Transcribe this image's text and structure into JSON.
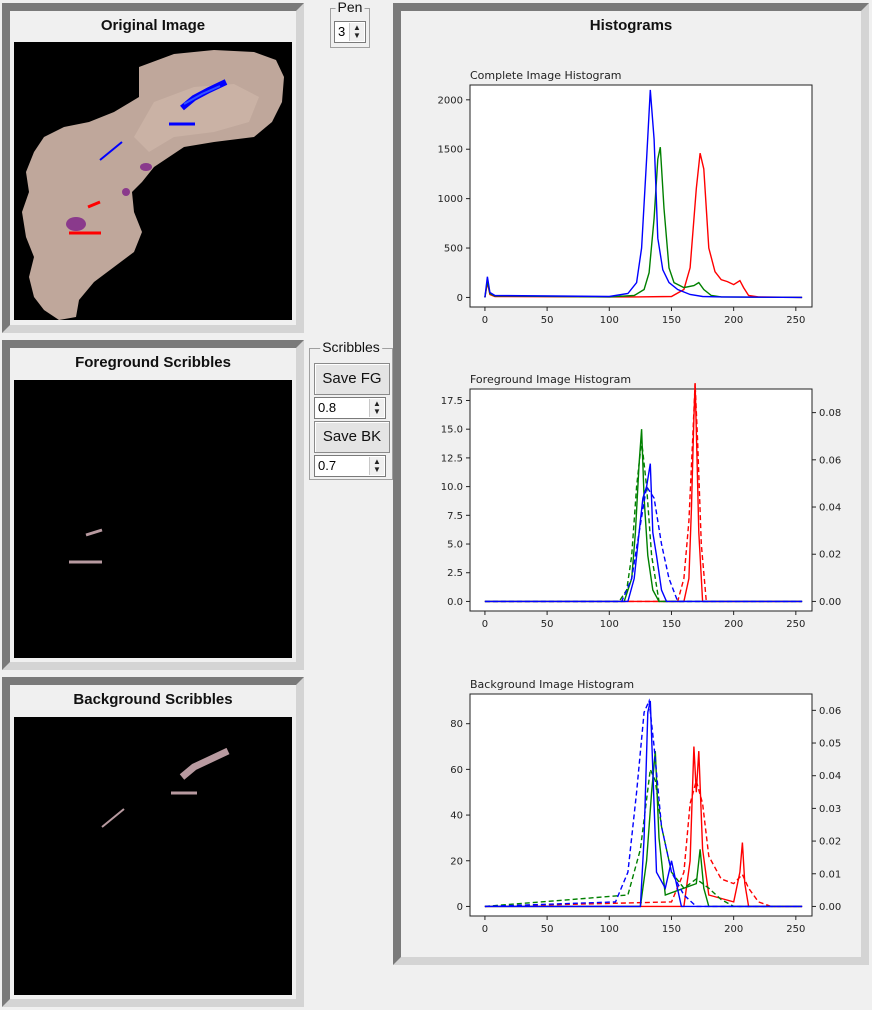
{
  "panels": {
    "original": {
      "title": "Original Image"
    },
    "foreground": {
      "title": "Foreground Scribbles"
    },
    "background": {
      "title": "Background Scribbles"
    },
    "histograms": {
      "title": "Histograms"
    }
  },
  "pen": {
    "label": "Pen",
    "value": "3"
  },
  "scribbles": {
    "label": "Scribbles",
    "save_fg_label": "Save FG",
    "fg_value": "0.8",
    "save_bk_label": "Save BK",
    "bk_value": "0.7"
  },
  "colors": {
    "red": "#ff0000",
    "green": "#008000",
    "blue": "#0000ff",
    "stain": "#b89aa0"
  },
  "chart_data": [
    {
      "type": "line",
      "title": "Complete Image Histogram",
      "xlim": [
        0,
        255
      ],
      "ylim": [
        0,
        2150
      ],
      "xticks": [
        0,
        50,
        100,
        150,
        200,
        250
      ],
      "yticks": [
        0,
        500,
        1000,
        1500,
        2000
      ],
      "series": [
        {
          "color": "red",
          "style": "solid",
          "x": [
            0,
            2,
            4,
            8,
            100,
            120,
            150,
            160,
            165,
            170,
            173,
            176,
            180,
            185,
            190,
            195,
            200,
            205,
            208,
            212,
            220,
            255
          ],
          "y": [
            0,
            150,
            30,
            10,
            5,
            5,
            10,
            80,
            300,
            1100,
            1460,
            1300,
            500,
            260,
            180,
            160,
            130,
            170,
            100,
            20,
            5,
            0
          ]
        },
        {
          "color": "green",
          "style": "solid",
          "x": [
            0,
            2,
            4,
            8,
            100,
            120,
            128,
            132,
            136,
            139,
            141,
            144,
            148,
            152,
            160,
            168,
            172,
            176,
            182,
            190,
            255
          ],
          "y": [
            0,
            170,
            40,
            15,
            5,
            20,
            80,
            250,
            800,
            1400,
            1520,
            900,
            300,
            150,
            100,
            120,
            150,
            80,
            20,
            5,
            0
          ]
        },
        {
          "color": "blue",
          "style": "solid",
          "x": [
            0,
            2,
            4,
            8,
            100,
            115,
            122,
            126,
            130,
            133,
            136,
            139,
            143,
            148,
            155,
            165,
            175,
            190,
            255
          ],
          "y": [
            0,
            210,
            50,
            20,
            10,
            40,
            150,
            500,
            1400,
            2100,
            1600,
            600,
            280,
            150,
            80,
            30,
            10,
            5,
            0
          ]
        }
      ]
    },
    {
      "type": "line",
      "title": "Foreground Image Histogram",
      "xlim": [
        0,
        255
      ],
      "ylim": [
        0,
        18.5
      ],
      "y2lim": [
        0,
        0.09
      ],
      "xticks": [
        0,
        50,
        100,
        150,
        200,
        250
      ],
      "yticks": [
        0.0,
        2.5,
        5.0,
        7.5,
        10.0,
        12.5,
        15.0,
        17.5
      ],
      "y2ticks": [
        0.0,
        0.02,
        0.04,
        0.06,
        0.08
      ],
      "series": [
        {
          "color": "red",
          "style": "solid",
          "x": [
            0,
            160,
            164,
            166,
            168,
            169,
            170,
            172,
            175,
            255
          ],
          "y": [
            0,
            0,
            2,
            8,
            16,
            19,
            15,
            6,
            0,
            0
          ]
        },
        {
          "color": "red",
          "style": "dashed",
          "x": [
            0,
            155,
            160,
            164,
            167,
            169,
            171,
            174,
            178,
            255
          ],
          "y": [
            0,
            0,
            2,
            7,
            14,
            19,
            14,
            5,
            0,
            0
          ]
        },
        {
          "color": "green",
          "style": "solid",
          "x": [
            0,
            112,
            118,
            121,
            124,
            126,
            128,
            131,
            135,
            140,
            255
          ],
          "y": [
            0,
            0,
            2,
            6,
            12,
            15,
            9,
            4,
            1,
            0,
            0
          ]
        },
        {
          "color": "green",
          "style": "dashed",
          "x": [
            0,
            108,
            114,
            118,
            122,
            126,
            130,
            134,
            140,
            255
          ],
          "y": [
            0,
            0,
            1,
            4,
            10,
            14,
            10,
            4,
            0,
            0
          ]
        },
        {
          "color": "blue",
          "style": "solid",
          "x": [
            0,
            115,
            120,
            124,
            127,
            130,
            133,
            135,
            138,
            142,
            146,
            255
          ],
          "y": [
            0,
            0,
            2,
            6,
            9,
            10,
            12,
            6,
            4,
            1,
            0,
            0
          ]
        },
        {
          "color": "blue",
          "style": "dashed",
          "x": [
            0,
            110,
            118,
            124,
            130,
            136,
            142,
            148,
            155,
            255
          ],
          "y": [
            0,
            0,
            2,
            6,
            10,
            9,
            5,
            2,
            0,
            0
          ]
        }
      ]
    },
    {
      "type": "line",
      "title": "Background Image Histogram",
      "xlim": [
        0,
        255
      ],
      "ylim": [
        0,
        93
      ],
      "y2lim": [
        0,
        0.065
      ],
      "xticks": [
        0,
        50,
        100,
        150,
        200,
        250
      ],
      "yticks": [
        0,
        20,
        40,
        60,
        80
      ],
      "y2ticks": [
        0.0,
        0.01,
        0.02,
        0.03,
        0.04,
        0.05,
        0.06
      ],
      "series": [
        {
          "color": "red",
          "style": "solid",
          "x": [
            0,
            160,
            165,
            168,
            170,
            172,
            175,
            180,
            200,
            205,
            207,
            209,
            212,
            255
          ],
          "y": [
            0,
            0,
            20,
            70,
            50,
            68,
            25,
            5,
            2,
            15,
            28,
            10,
            0,
            0
          ]
        },
        {
          "color": "red",
          "style": "dashed",
          "x": [
            0,
            150,
            160,
            165,
            170,
            175,
            180,
            190,
            200,
            207,
            212,
            220,
            230,
            255
          ],
          "y": [
            0,
            2,
            15,
            45,
            55,
            45,
            22,
            12,
            10,
            14,
            8,
            2,
            0,
            0
          ]
        },
        {
          "color": "green",
          "style": "solid",
          "x": [
            0,
            125,
            130,
            134,
            137,
            140,
            145,
            170,
            173,
            176,
            180,
            255
          ],
          "y": [
            0,
            0,
            20,
            50,
            68,
            30,
            5,
            10,
            25,
            8,
            0,
            0
          ]
        },
        {
          "color": "green",
          "style": "dashed",
          "x": [
            0,
            115,
            125,
            133,
            137,
            142,
            150,
            160,
            170,
            180,
            190,
            200,
            255
          ],
          "y": [
            0,
            5,
            25,
            60,
            55,
            35,
            15,
            8,
            12,
            8,
            3,
            0,
            0
          ]
        },
        {
          "color": "blue",
          "style": "solid",
          "x": [
            0,
            125,
            128,
            131,
            133,
            135,
            138,
            145,
            150,
            154,
            158,
            255
          ],
          "y": [
            0,
            0,
            30,
            85,
            90,
            60,
            15,
            8,
            20,
            10,
            0,
            0
          ]
        },
        {
          "color": "blue",
          "style": "dashed",
          "x": [
            0,
            105,
            115,
            122,
            128,
            132,
            136,
            142,
            150,
            160,
            170,
            255
          ],
          "y": [
            0,
            2,
            15,
            50,
            85,
            90,
            70,
            35,
            15,
            5,
            0,
            0
          ]
        }
      ]
    }
  ]
}
